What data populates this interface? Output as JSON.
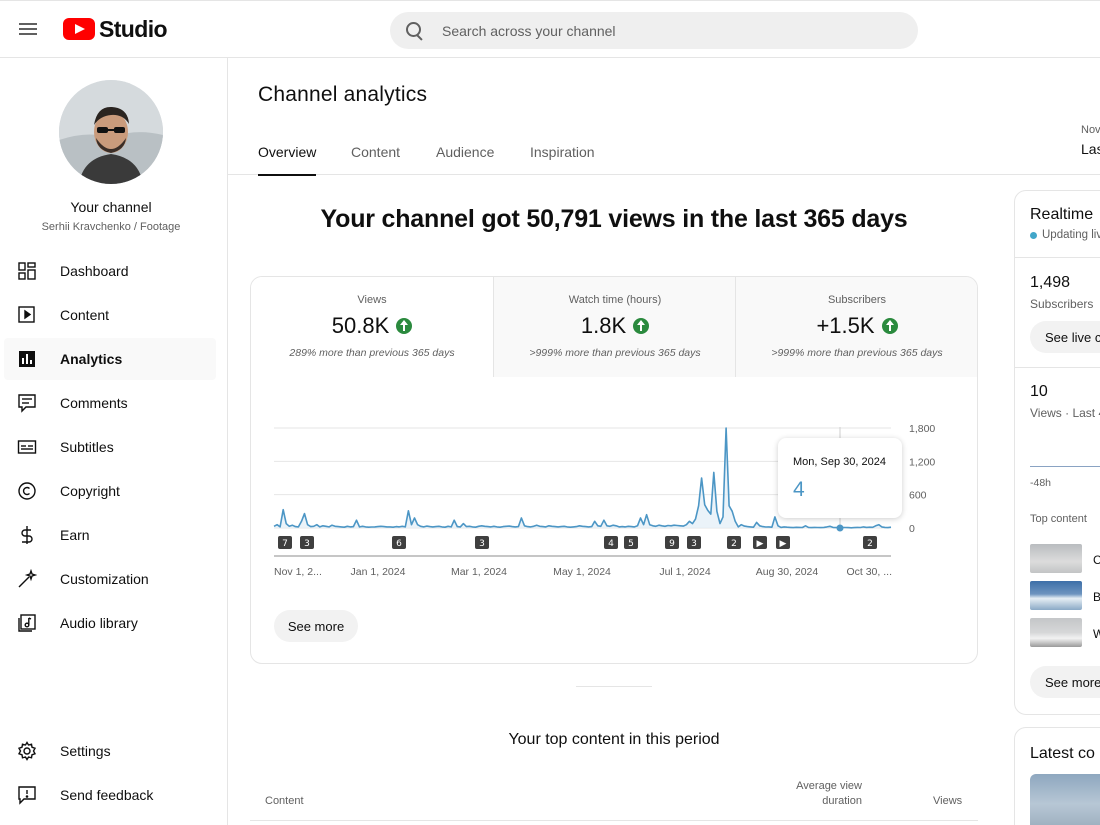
{
  "app": {
    "logo_text": "Studio",
    "brand_color": "#ff0000"
  },
  "search": {
    "placeholder": "Search across your channel"
  },
  "sidebar": {
    "channel_name": "Your channel",
    "channel_sub": "Serhii Kravchenko / Footage",
    "items": [
      {
        "label": "Dashboard",
        "icon": "dashboard-icon"
      },
      {
        "label": "Content",
        "icon": "content-icon"
      },
      {
        "label": "Analytics",
        "icon": "analytics-icon",
        "active": true
      },
      {
        "label": "Comments",
        "icon": "comments-icon"
      },
      {
        "label": "Subtitles",
        "icon": "subtitles-icon"
      },
      {
        "label": "Copyright",
        "icon": "copyright-icon"
      },
      {
        "label": "Earn",
        "icon": "earn-icon"
      },
      {
        "label": "Customization",
        "icon": "customization-icon"
      },
      {
        "label": "Audio library",
        "icon": "audio-library-icon"
      }
    ],
    "bottom": [
      {
        "label": "Settings",
        "icon": "settings-icon"
      },
      {
        "label": "Send feedback",
        "icon": "feedback-icon"
      }
    ]
  },
  "main": {
    "title": "Channel analytics",
    "tabs": [
      "Overview",
      "Content",
      "Audience",
      "Inspiration"
    ],
    "active_tab": "Overview",
    "date_range_label": "Nov",
    "date_range_value": "Las",
    "headline": "Your channel got 50,791 views in the last 365 days"
  },
  "metrics": [
    {
      "title": "Views",
      "value": "50.8K",
      "note": "289% more than previous 365 days",
      "selected": true
    },
    {
      "title": "Watch time (hours)",
      "value": "1.8K",
      "note": ">999% more than previous 365 days"
    },
    {
      "title": "Subscribers",
      "value": "+1.5K",
      "note": ">999% more than previous 365 days"
    }
  ],
  "chart_data": {
    "type": "line",
    "series": [
      {
        "values": [
          30,
          60,
          20,
          330,
          80,
          30,
          50,
          25,
          20,
          120,
          260,
          60,
          25,
          30,
          60,
          20,
          40,
          30,
          20,
          50,
          30,
          25,
          20,
          15,
          30,
          20,
          25,
          140,
          20,
          30,
          20,
          15,
          18,
          20,
          25,
          30,
          25,
          20,
          20,
          15,
          25,
          20,
          30,
          20,
          310,
          60,
          180,
          60,
          30,
          20,
          35,
          25,
          20,
          25,
          30,
          20,
          15,
          30,
          20,
          140,
          25,
          20,
          80,
          25,
          30,
          20,
          15,
          30,
          40,
          30,
          25,
          20,
          30,
          20,
          15,
          25,
          30,
          35,
          25,
          20,
          25,
          180,
          40,
          25,
          20,
          30,
          50,
          30,
          25,
          20,
          40,
          30,
          25,
          20,
          25,
          30,
          20,
          15,
          20,
          25,
          40,
          30,
          25,
          20,
          25,
          120,
          40,
          30,
          140,
          40,
          30,
          50,
          40,
          20,
          25,
          20,
          30,
          25,
          20,
          40,
          180,
          60,
          240,
          60,
          40,
          30,
          50,
          40,
          30,
          45,
          40,
          50,
          45,
          40,
          35,
          60,
          120,
          80,
          160,
          400,
          900,
          420,
          320,
          250,
          1000,
          300,
          80,
          200,
          1800,
          400,
          300,
          120,
          20,
          60,
          35,
          25,
          20,
          15,
          100,
          40,
          25,
          18,
          20,
          15,
          200,
          40,
          10,
          20,
          15,
          10,
          8,
          12,
          10,
          9,
          40,
          10,
          8,
          10,
          9,
          8,
          10,
          20,
          30,
          10,
          8,
          12,
          10,
          9,
          8,
          4,
          8,
          10,
          9,
          20,
          10,
          15,
          12,
          40,
          60,
          20,
          10,
          8,
          15
        ]
      }
    ],
    "x_tick_labels": [
      "Nov 1, 2...",
      "Jan 1, 2024",
      "Mar 1, 2024",
      "May 1, 2024",
      "Jul 1, 2024",
      "Aug 30, 2024",
      "Oct 30, ..."
    ],
    "y_ticks": [
      1800,
      1200,
      600,
      0
    ],
    "y_tick_labels": [
      "1,800",
      "1,200",
      "600",
      "0"
    ],
    "ylim": [
      0,
      1800
    ],
    "line_color": "#4c96c5",
    "markers": [
      "7",
      "3",
      "6",
      "3",
      "4",
      "5",
      "9",
      "3",
      "2",
      "▶",
      "▶",
      "2"
    ],
    "tooltip": {
      "date": "Mon, Sep 30, 2024",
      "value": "4"
    }
  },
  "see_more": "See more",
  "top_content": {
    "title": "Your top content in this period",
    "col_content": "Content",
    "col_avd_1": "Average view",
    "col_avd_2": "duration",
    "col_views": "Views"
  },
  "realtime": {
    "title": "Realtime",
    "updating": "Updating liv",
    "subs_value": "1,498",
    "subs_label": "Subscribers",
    "see_live": "See live c",
    "views_value": "10",
    "views_label": "Views · Last 4",
    "axis_label": "-48h",
    "top_content_label": "Top content",
    "top_items": [
      "C",
      "B",
      "W"
    ],
    "see_more": "See more"
  },
  "latest": {
    "title": "Latest co"
  }
}
